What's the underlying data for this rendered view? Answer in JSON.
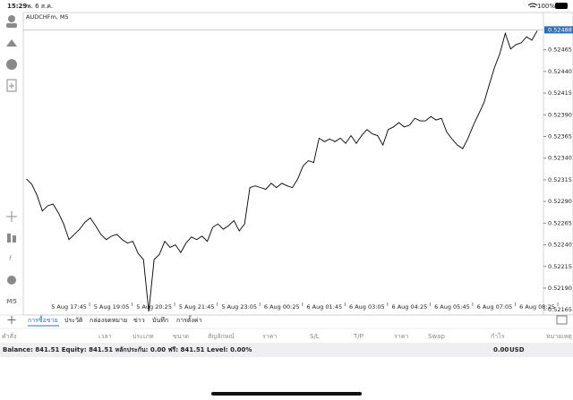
{
  "status_bar": {
    "time": "15:29",
    "date": "พ. 6 ส.ค.",
    "battery": "100%"
  },
  "toolbar": {
    "timeframe": "M5"
  },
  "chart_data": {
    "type": "line",
    "title": "AUDCHFm, M5",
    "color": "#000000",
    "values": [
      0.52316,
      0.5231,
      0.52297,
      0.52279,
      0.52285,
      0.52287,
      0.52277,
      0.52264,
      0.52246,
      0.52252,
      0.52258,
      0.52266,
      0.52271,
      0.52262,
      0.52252,
      0.52246,
      0.5225,
      0.52252,
      0.52246,
      0.52242,
      0.52244,
      0.5223,
      0.52223,
      0.52163,
      0.52223,
      0.52229,
      0.52244,
      0.52237,
      0.5224,
      0.52231,
      0.52242,
      0.52249,
      0.52246,
      0.5225,
      0.52244,
      0.5226,
      0.52264,
      0.52258,
      0.52262,
      0.52268,
      0.52256,
      0.52264,
      0.52306,
      0.52308,
      0.52306,
      0.52304,
      0.52311,
      0.52306,
      0.52311,
      0.52308,
      0.52306,
      0.52316,
      0.52331,
      0.52337,
      0.52335,
      0.52363,
      0.52359,
      0.52362,
      0.52359,
      0.52363,
      0.52357,
      0.52366,
      0.52357,
      0.52366,
      0.52373,
      0.52368,
      0.52366,
      0.52355,
      0.52373,
      0.52376,
      0.52381,
      0.52376,
      0.52378,
      0.52386,
      0.52383,
      0.52383,
      0.52388,
      0.52384,
      0.52386,
      0.5237,
      0.52362,
      0.52355,
      0.52351,
      0.52363,
      0.52378,
      0.52391,
      0.52404,
      0.52425,
      0.52445,
      0.52461,
      0.52484,
      0.52466,
      0.52471,
      0.52473,
      0.5248,
      0.52476,
      0.52487
    ],
    "xlim": [
      0,
      96.5
    ],
    "xticks": [
      {
        "value": 8,
        "label": "5 Aug 17:45"
      },
      {
        "value": 16,
        "label": "5 Aug 19:05"
      },
      {
        "value": 24,
        "label": "5 Aug 20:25"
      },
      {
        "value": 32,
        "label": "5 Aug 21:45"
      },
      {
        "value": 40,
        "label": "5 Aug 23:05"
      },
      {
        "value": 48,
        "label": "6 Aug 00:25"
      },
      {
        "value": 56,
        "label": "6 Aug 01:45"
      },
      {
        "value": 64,
        "label": "6 Aug 03:05"
      },
      {
        "value": 72,
        "label": "6 Aug 04:25"
      },
      {
        "value": 80,
        "label": "6 Aug 05:45"
      },
      {
        "value": 88,
        "label": "6 Aug 07:05"
      },
      {
        "value": 96,
        "label": "6 Aug 08:25"
      }
    ],
    "ylim": [
      0.52159,
      0.52508
    ],
    "yticks": [
      0.52165,
      {
        "value": 0.5219,
        "label": "0.52190"
      },
      0.52215,
      {
        "value": 0.5224,
        "label": "0.52240"
      },
      0.52265,
      {
        "value": 0.5229,
        "label": "0.52290"
      },
      0.52315,
      {
        "value": 0.5234,
        "label": "0.52340"
      },
      0.52365,
      {
        "value": 0.5239,
        "label": "0.52390"
      },
      0.52415,
      {
        "value": 0.5244,
        "label": "0.52440"
      },
      0.52465
    ],
    "current_price": 0.52488
  },
  "tabs": [
    "การซื้อขาย",
    "ประวัติ",
    "กล่องจดหมาย",
    "ข่าว",
    "บันทึก",
    "การตั้งค่า"
  ],
  "table": {
    "headers": [
      "คำสั่ง",
      "เวลา",
      "ประเภท",
      "ขนาด",
      "สัญลักษณ์",
      "ราคา",
      "S/L",
      "T/P",
      "ราคา",
      "Swap",
      "กำไร",
      "หมายเหตุ"
    ]
  },
  "account": {
    "summary": "Balance: 841.51 Equity: 841.51 หลักประกัน: 0.00 ฟรี: 841.51 Level: 0.00%",
    "profit": "0.00",
    "currency": "USD"
  }
}
